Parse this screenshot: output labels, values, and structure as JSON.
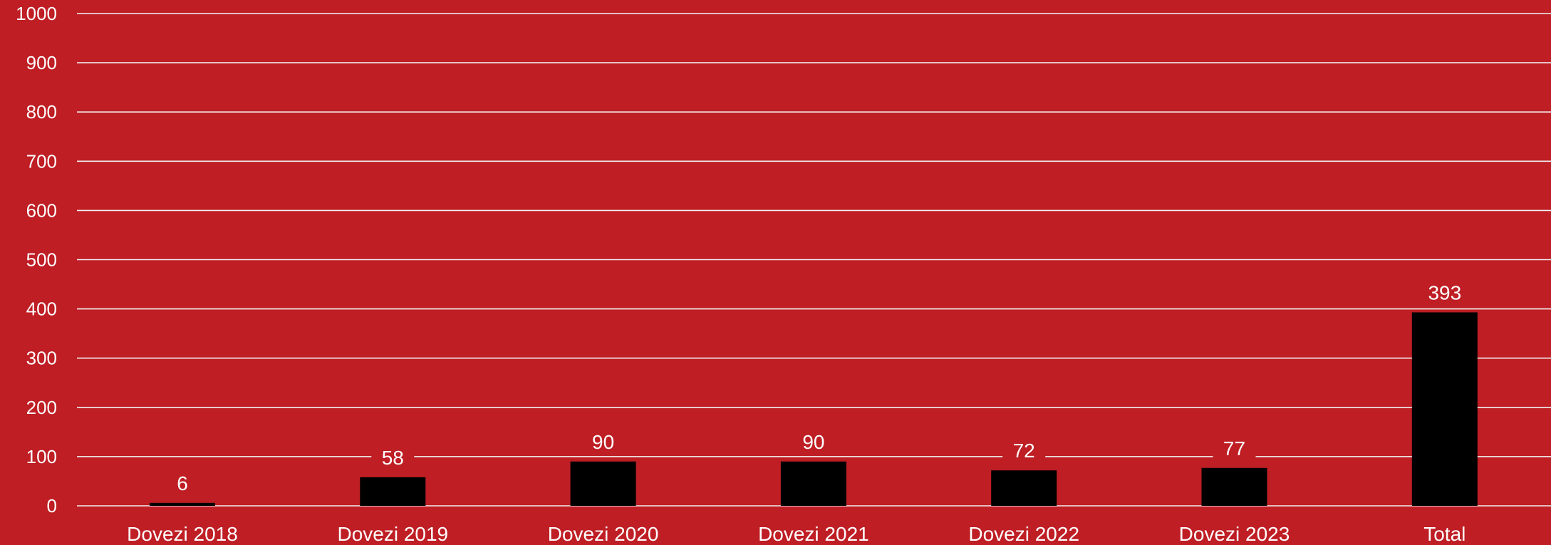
{
  "chart_data": {
    "type": "bar",
    "categories": [
      "Dovezi 2018",
      "Dovezi 2019",
      "Dovezi 2020",
      "Dovezi 2021",
      "Dovezi 2022",
      "Dovezi 2023",
      "Total"
    ],
    "values": [
      6,
      58,
      90,
      90,
      72,
      77,
      393
    ],
    "data_labels": [
      "6",
      "58",
      "90",
      "90",
      "72",
      "77",
      "393"
    ],
    "yticks": [
      "0",
      "100",
      "200",
      "300",
      "400",
      "500",
      "600",
      "700",
      "800",
      "900",
      "1000"
    ],
    "ylim": [
      0,
      1000
    ],
    "grid": true,
    "legend": "none",
    "title": "",
    "xlabel": "",
    "ylabel": ""
  },
  "colors": {
    "background": "#BE1E24",
    "bar": "#000000",
    "grid": "#F2F2F2",
    "text": "#FFFFFF"
  }
}
